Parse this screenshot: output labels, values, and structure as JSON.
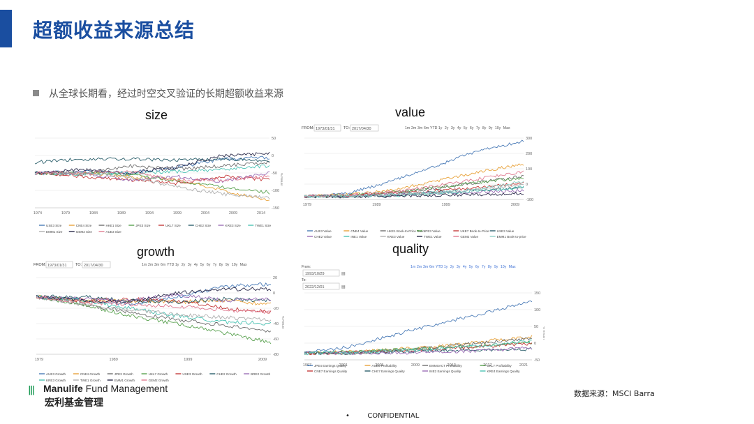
{
  "slide": {
    "title": "超额收益来源总结",
    "bullet": "从全球长期看，经过时空交叉验证的长期超额收益来源",
    "source": "数据来源：MSCI Barra",
    "confidential": "CONFIDENTIAL",
    "accent_color": "#1a4ea0"
  },
  "logo": {
    "mark": "|||",
    "brand": "Manulife",
    "sub": " Fund Management",
    "chinese": "宏利基金管理",
    "mark_color": "#1e9b57"
  },
  "charts": {
    "size": {
      "title": "size",
      "x_ticks": [
        "1974",
        "1979",
        "1984",
        "1989",
        "1994",
        "1999",
        "2004",
        "2009",
        "2014"
      ],
      "y_ticks": [
        "50",
        "0",
        "-50",
        "-100",
        "-150"
      ],
      "y_axis_label": "% Return",
      "legend": [
        "USE3 Size",
        "CNE4 Size",
        "HKE1 Size",
        "JPE3 Size",
        "UKL7 Size",
        "CHE2 Size",
        "KRE3 Size",
        "TWE1 Size",
        "EMM1 Size",
        "GEM2 Size",
        "AUE3 Size"
      ]
    },
    "value": {
      "title": "value",
      "from_label": "FROM:",
      "from_value": "1973/01/31",
      "to_label": "TO:",
      "to_value": "2017/04/30",
      "ranges": [
        "1m",
        "2m",
        "3m",
        "6m",
        "YTD",
        "1y",
        "2y",
        "3y",
        "4y",
        "5y",
        "6y",
        "7y",
        "8y",
        "9y",
        "10y",
        "Max"
      ],
      "x_ticks": [
        "1979",
        "1989",
        "1999",
        "2009"
      ],
      "y_ticks": [
        "300",
        "200",
        "100",
        "0",
        "-100"
      ],
      "y_axis_label": "% Return",
      "legend": [
        "AUE3 Value",
        "CNE4 Value",
        "HKE1 Book-to-Price Ratio",
        "JPE3 Value",
        "UKE7 Book-to-Price",
        "USE3 Value",
        "CHE2 Value",
        "INE1 Value",
        "KRE3 Value",
        "TWE1 Value",
        "GEM2 Value",
        "EMM1 Book-to-price"
      ]
    },
    "growth": {
      "title": "growth",
      "from_label": "FROM:",
      "from_value": "1973/01/31",
      "to_label": "TO:",
      "to_value": "2017/04/30",
      "ranges": [
        "1m",
        "2m",
        "3m",
        "6m",
        "YTD",
        "1y",
        "2y",
        "3y",
        "4y",
        "5y",
        "6y",
        "7y",
        "8y",
        "9y",
        "10y",
        "Max"
      ],
      "x_ticks": [
        "1979",
        "1989",
        "1999",
        "2009"
      ],
      "y_ticks": [
        "20",
        "0",
        "-20",
        "-40",
        "-60",
        "-80"
      ],
      "y_axis_label": "% Return",
      "legend": [
        "AUE3 Growth",
        "CNE4 Growth",
        "JPE3 Growth",
        "UKL7 Growth",
        "USE3 Growth",
        "CHE2 Growth",
        "BRE2 Growth",
        "KRE3 Growth",
        "TWE1 Growth",
        "EMM1 Growth",
        "GEM2 Growth"
      ]
    },
    "quality": {
      "title": "quality",
      "from_label": "From:",
      "from_value": "1993/10/29",
      "to_label": "To:",
      "to_value": "2022/12/01",
      "ranges": [
        "1m",
        "2m",
        "3m",
        "6m",
        "YTD",
        "1y",
        "2y",
        "3y",
        "4y",
        "5y",
        "6y",
        "7y",
        "8y",
        "9y",
        "10y",
        "Max"
      ],
      "x_ticks": [
        "1997",
        "2001",
        "2005",
        "2009",
        "2013",
        "2017",
        "2021"
      ],
      "y_ticks": [
        "150",
        "100",
        "50",
        "0",
        "-50"
      ],
      "y_axis_label": "% Return",
      "legend": [
        "JPE4 Earnings Quality",
        "AUE5 Profitability",
        "EMMSACT Profitability",
        "UKL7 Profitability",
        "CNE7 Earnings Quality",
        "CHE7 Earnings Quality",
        "INE2 Earnings Quality",
        "KRE4 Earnings Quality"
      ]
    }
  }
}
